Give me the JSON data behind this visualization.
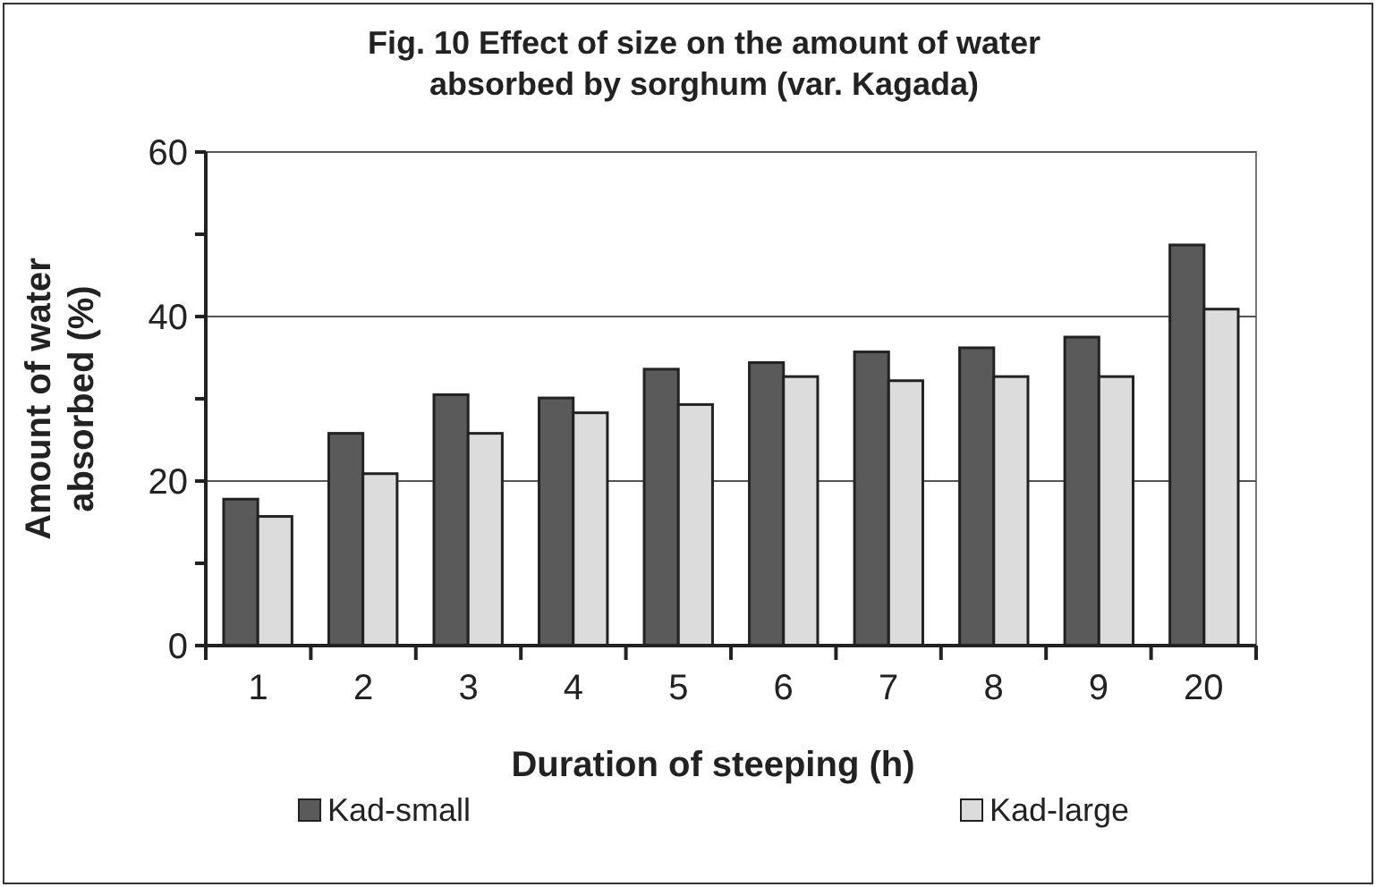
{
  "chart_data": {
    "type": "bar",
    "title": "Fig. 10 Effect of size on the amount of water absorbed by sorghum (var. Kagada)",
    "xlabel": "Duration of steeping (h)",
    "ylabel": "Amount of water absorbed (%)",
    "categories": [
      "1",
      "2",
      "3",
      "4",
      "5",
      "6",
      "7",
      "8",
      "9",
      "20"
    ],
    "series": [
      {
        "name": "Kad-small",
        "color": "#5a5a5a",
        "values": [
          17.8,
          25.8,
          30.5,
          30.1,
          33.6,
          34.4,
          35.7,
          36.2,
          37.5,
          48.7
        ]
      },
      {
        "name": "Kad-large",
        "color": "#dcdcdc",
        "values": [
          15.7,
          20.9,
          25.8,
          28.3,
          29.3,
          32.7,
          32.2,
          32.7,
          32.7,
          40.9
        ]
      }
    ],
    "ylim": [
      0,
      60
    ],
    "yticks": [
      0,
      {
        "value": 10,
        "label": null
      },
      20,
      {
        "value": 30,
        "label": null
      },
      40,
      {
        "value": 50,
        "label": null
      },
      60
    ],
    "grid": "y",
    "legend": "bottom"
  }
}
